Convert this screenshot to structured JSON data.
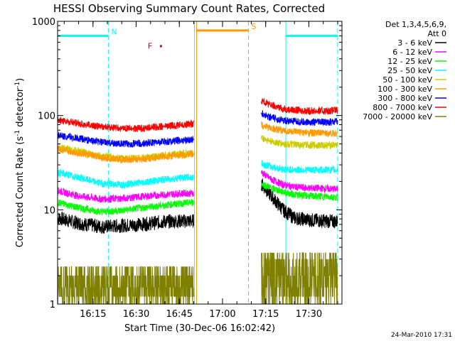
{
  "chart_data": {
    "type": "line",
    "title": "HESSI Observing Summary Count Rates, Corrected",
    "xlabel": "Start Time (30-Dec-06 16:02:42)",
    "ylabel": "Corrected Count Rate (s⁻¹ detector⁻¹)",
    "ylabel_main": "Corrected Count Rate (s",
    "ylabel_exp1": "-1",
    "ylabel_mid": " detector",
    "ylabel_exp2": "-1",
    "ylabel_end": ")",
    "yscale": "log",
    "ylim": [
      1,
      1000
    ],
    "y_ticks": [
      {
        "value": 1,
        "label": "1"
      },
      {
        "value": 10,
        "label": "10"
      },
      {
        "value": 100,
        "label": "100"
      },
      {
        "value": 1000,
        "label": "1000"
      }
    ],
    "xlim": [
      "16:02:42",
      "17:41:30"
    ],
    "x_ticks": [
      {
        "time": "16:15",
        "label": "16:15"
      },
      {
        "time": "16:30",
        "label": "16:30"
      },
      {
        "time": "16:45",
        "label": "16:45"
      },
      {
        "time": "17:00",
        "label": "17:00"
      },
      {
        "time": "17:15",
        "label": "17:15"
      },
      {
        "time": "17:30",
        "label": "17:30"
      }
    ],
    "legend_placement": "outside-right",
    "legend_header": [
      "Det 1,3,4,5,6,9,",
      "Att 0"
    ],
    "data_gap": [
      "16:51:00",
      "17:13:30"
    ],
    "series": [
      {
        "name": "3 - 6 keV",
        "color": "#000000",
        "points": [
          [
            "16:02:42",
            8.2
          ],
          [
            "16:10",
            7.2
          ],
          [
            "16:18",
            6.6
          ],
          [
            "16:25",
            6.8
          ],
          [
            "16:32",
            7.0
          ],
          [
            "16:40",
            7.5
          ],
          [
            "16:47",
            7.6
          ],
          [
            "16:50",
            7.6
          ],
          [
            "17:13:30",
            19
          ],
          [
            "17:17",
            14
          ],
          [
            "17:21",
            10
          ],
          [
            "17:25",
            8.2
          ],
          [
            "17:30",
            7.8
          ],
          [
            "17:36",
            7.6
          ],
          [
            "17:40",
            7.5
          ]
        ]
      },
      {
        "name": "6 - 12 keV",
        "color": "#ff00ff",
        "points": [
          [
            "16:02:42",
            16
          ],
          [
            "16:10",
            14
          ],
          [
            "16:18",
            13
          ],
          [
            "16:25",
            13.2
          ],
          [
            "16:32",
            13.8
          ],
          [
            "16:40",
            14.5
          ],
          [
            "16:47",
            15
          ],
          [
            "16:50",
            15
          ],
          [
            "17:13:30",
            25
          ],
          [
            "17:17",
            21
          ],
          [
            "17:21",
            18.5
          ],
          [
            "17:25",
            17.5
          ],
          [
            "17:30",
            17
          ],
          [
            "17:36",
            16.8
          ],
          [
            "17:40",
            16.5
          ]
        ]
      },
      {
        "name": "12 - 25 keV",
        "color": "#00ff00",
        "points": [
          [
            "16:02:42",
            12
          ],
          [
            "16:10",
            10.5
          ],
          [
            "16:18",
            9.5
          ],
          [
            "16:25",
            9.8
          ],
          [
            "16:32",
            10.5
          ],
          [
            "16:40",
            11.2
          ],
          [
            "16:47",
            11.8
          ],
          [
            "16:50",
            12
          ],
          [
            "17:13:30",
            19
          ],
          [
            "17:17",
            17
          ],
          [
            "17:21",
            15.5
          ],
          [
            "17:25",
            14.5
          ],
          [
            "17:30",
            14
          ],
          [
            "17:36",
            13.8
          ],
          [
            "17:40",
            13.5
          ]
        ]
      },
      {
        "name": "25 - 50 keV",
        "color": "#00ffff",
        "points": [
          [
            "16:02:42",
            25
          ],
          [
            "16:10",
            22
          ],
          [
            "16:18",
            19
          ],
          [
            "16:25",
            18.5
          ],
          [
            "16:32",
            19.5
          ],
          [
            "16:40",
            21
          ],
          [
            "16:47",
            22
          ],
          [
            "16:50",
            22
          ],
          [
            "17:13:30",
            31
          ],
          [
            "17:17",
            28.5
          ],
          [
            "17:21",
            27
          ],
          [
            "17:25",
            26.5
          ],
          [
            "17:30",
            26.5
          ],
          [
            "17:36",
            26.5
          ],
          [
            "17:40",
            26.5
          ]
        ]
      },
      {
        "name": "50 - 100 keV",
        "color": "#cccc00",
        "points": [
          [
            "16:02:42",
            46
          ],
          [
            "16:10",
            42
          ],
          [
            "16:18",
            37
          ],
          [
            "16:25",
            35
          ],
          [
            "16:32",
            35.5
          ],
          [
            "16:40",
            38
          ],
          [
            "16:47",
            40
          ],
          [
            "16:50",
            40
          ],
          [
            "17:13:30",
            58
          ],
          [
            "17:17",
            53
          ],
          [
            "17:21",
            50
          ],
          [
            "17:25",
            49
          ],
          [
            "17:30",
            48.5
          ],
          [
            "17:36",
            48.5
          ],
          [
            "17:40",
            49
          ]
        ]
      },
      {
        "name": "100 - 300 keV",
        "color": "#ff9900",
        "points": [
          [
            "16:02:42",
            44
          ],
          [
            "16:10",
            40
          ],
          [
            "16:18",
            36
          ],
          [
            "16:25",
            34
          ],
          [
            "16:32",
            34.5
          ],
          [
            "16:40",
            37
          ],
          [
            "16:47",
            38.5
          ],
          [
            "16:50",
            39
          ],
          [
            "17:13:30",
            80
          ],
          [
            "17:17",
            73
          ],
          [
            "17:21",
            69
          ],
          [
            "17:25",
            67
          ],
          [
            "17:30",
            65.5
          ],
          [
            "17:36",
            65
          ],
          [
            "17:40",
            65
          ]
        ]
      },
      {
        "name": "300 - 800 keV",
        "color": "#0000ff",
        "points": [
          [
            "16:02:42",
            62
          ],
          [
            "16:10",
            57
          ],
          [
            "16:18",
            52
          ],
          [
            "16:25",
            50
          ],
          [
            "16:32",
            50.5
          ],
          [
            "16:40",
            53
          ],
          [
            "16:47",
            55
          ],
          [
            "16:50",
            56
          ],
          [
            "17:13:30",
            105
          ],
          [
            "17:17",
            95
          ],
          [
            "17:21",
            89
          ],
          [
            "17:25",
            86
          ],
          [
            "17:30",
            85
          ],
          [
            "17:36",
            85
          ],
          [
            "17:40",
            86
          ]
        ]
      },
      {
        "name": "800 - 7000 keV",
        "color": "#ff0000",
        "points": [
          [
            "16:02:42",
            90
          ],
          [
            "16:10",
            82
          ],
          [
            "16:18",
            76
          ],
          [
            "16:25",
            73
          ],
          [
            "16:32",
            73
          ],
          [
            "16:40",
            77
          ],
          [
            "16:47",
            80
          ],
          [
            "16:50",
            82
          ],
          [
            "17:13:30",
            145
          ],
          [
            "17:17",
            128
          ],
          [
            "17:21",
            118
          ],
          [
            "17:25",
            114
          ],
          [
            "17:30",
            112
          ],
          [
            "17:36",
            112
          ],
          [
            "17:40",
            114
          ]
        ]
      },
      {
        "name": "7000 - 20000 keV",
        "color": "#808000",
        "points": [
          [
            "16:02:42",
            2.5
          ],
          [
            "16:20",
            2.4
          ],
          [
            "16:40",
            2.45
          ],
          [
            "16:50",
            2.5
          ],
          [
            "17:13:30",
            2.1
          ],
          [
            "17:25",
            2.3
          ],
          [
            "17:40",
            3.2
          ]
        ]
      }
    ],
    "intervals": [
      {
        "label": "N",
        "color": "#00ffff",
        "level": 700,
        "start": "16:02:42",
        "end": "16:20:20"
      },
      {
        "label": "",
        "color": "#00ffff",
        "level": 700,
        "start": "17:22:00",
        "end": "17:40:00"
      },
      {
        "label": "S",
        "color": "#ff9900",
        "level": 800,
        "start": "16:51:00",
        "end": "17:09:00"
      }
    ],
    "flare_marker": {
      "label": "F",
      "color": "#cc0000",
      "time": "16:37:30",
      "value": 550
    }
  },
  "footer": {
    "timestamp": "24-Mar-2010 17:31"
  }
}
